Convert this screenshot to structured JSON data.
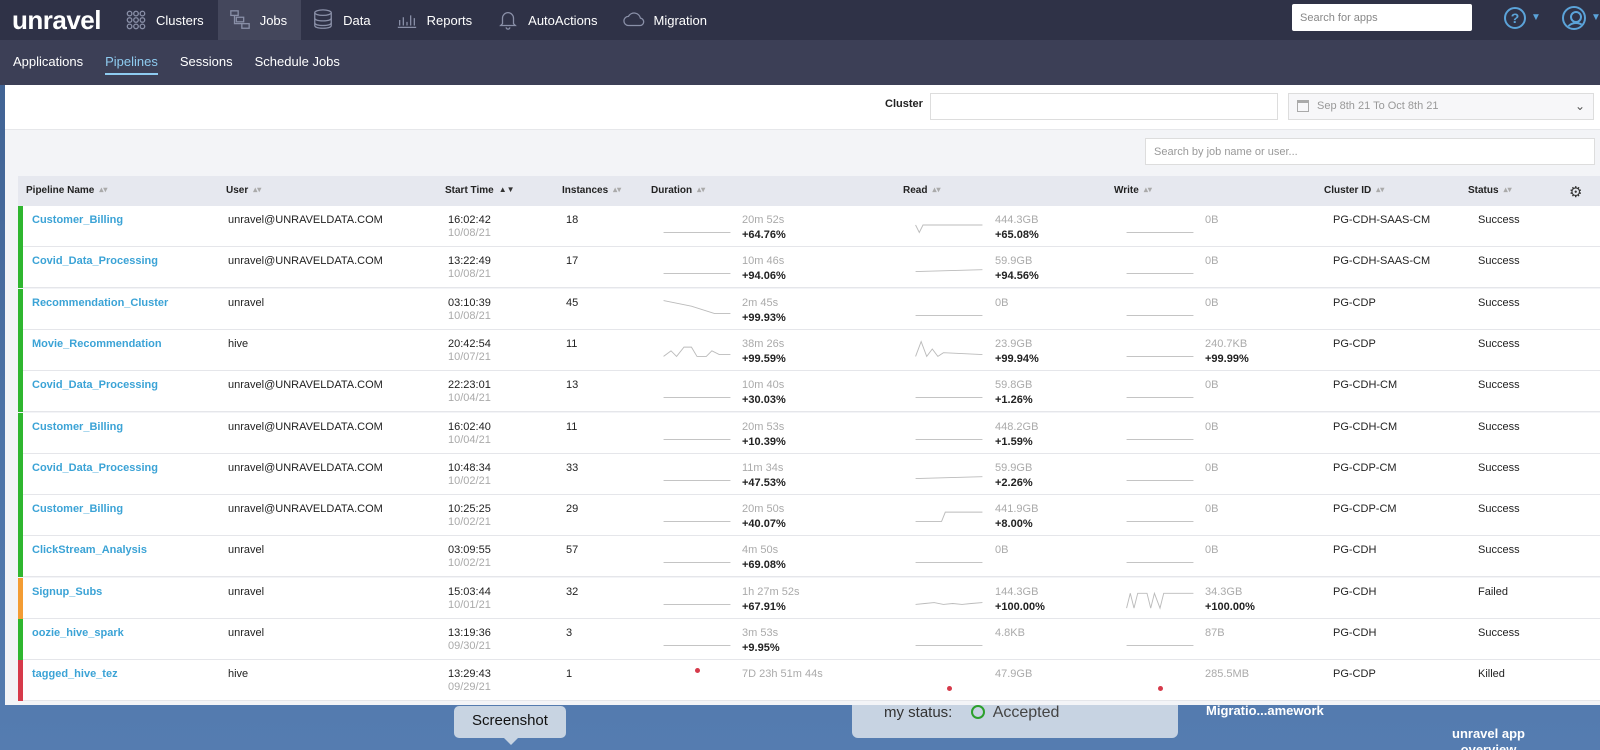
{
  "brand": "unravel",
  "nav": [
    {
      "label": "Clusters",
      "icon": "clusters-icon",
      "active": false
    },
    {
      "label": "Jobs",
      "icon": "jobs-icon",
      "active": true
    },
    {
      "label": "Data",
      "icon": "data-icon",
      "active": false
    },
    {
      "label": "Reports",
      "icon": "reports-icon",
      "active": false
    },
    {
      "label": "AutoActions",
      "icon": "bell-icon",
      "active": false
    },
    {
      "label": "Migration",
      "icon": "cloud-icon",
      "active": false
    }
  ],
  "search_apps": {
    "placeholder": "Search for apps"
  },
  "subnav": [
    {
      "label": "Applications",
      "active": false
    },
    {
      "label": "Pipelines",
      "active": true
    },
    {
      "label": "Sessions",
      "active": false
    },
    {
      "label": "Schedule Jobs",
      "active": false
    }
  ],
  "filters": {
    "cluster_label": "Cluster",
    "date_range": "Sep 8th 21 To Oct 8th 21"
  },
  "job_search": {
    "placeholder": "Search by job name or user..."
  },
  "columns": [
    "Pipeline Name",
    "User",
    "Start Time",
    "Instances",
    "Duration",
    "Read",
    "Write",
    "Cluster ID",
    "Status"
  ],
  "colors": {
    "success": "#2fb62f",
    "failed": "#f39c34",
    "killed": "#d63a4a",
    "link": "#3ba3d6"
  },
  "rows": [
    {
      "name": "Customer_Billing",
      "user": "unravel@UNRAVELDATA.COM",
      "time": "16:02:42",
      "date": "10/08/21",
      "instances": "18",
      "duration": "20m 52s",
      "duration_pct": "+64.76%",
      "read": "444.3GB",
      "read_pct": "+65.08%",
      "write": "0B",
      "write_pct": "",
      "cluster": "PG-CDH-SAAS-CM",
      "status": "Success"
    },
    {
      "name": "Covid_Data_Processing",
      "user": "unravel@UNRAVELDATA.COM",
      "time": "13:22:49",
      "date": "10/08/21",
      "instances": "17",
      "duration": "10m 46s",
      "duration_pct": "+94.06%",
      "read": "59.9GB",
      "read_pct": "+94.56%",
      "write": "0B",
      "write_pct": "",
      "cluster": "PG-CDH-SAAS-CM",
      "status": "Success"
    },
    {
      "name": "Recommendation_Cluster",
      "user": "unravel",
      "time": "03:10:39",
      "date": "10/08/21",
      "instances": "45",
      "duration": "2m 45s",
      "duration_pct": "+99.93%",
      "read": "0B",
      "read_pct": "",
      "write": "0B",
      "write_pct": "",
      "cluster": "PG-CDP",
      "status": "Success"
    },
    {
      "name": "Movie_Recommendation",
      "user": "hive",
      "time": "20:42:54",
      "date": "10/07/21",
      "instances": "11",
      "duration": "38m 26s",
      "duration_pct": "+99.59%",
      "read": "23.9GB",
      "read_pct": "+99.94%",
      "write": "240.7KB",
      "write_pct": "+99.99%",
      "cluster": "PG-CDP",
      "status": "Success"
    },
    {
      "name": "Covid_Data_Processing",
      "user": "unravel@UNRAVELDATA.COM",
      "time": "22:23:01",
      "date": "10/04/21",
      "instances": "13",
      "duration": "10m 40s",
      "duration_pct": "+30.03%",
      "read": "59.8GB",
      "read_pct": "+1.26%",
      "write": "0B",
      "write_pct": "",
      "cluster": "PG-CDH-CM",
      "status": "Success"
    },
    {
      "name": "Customer_Billing",
      "user": "unravel@UNRAVELDATA.COM",
      "time": "16:02:40",
      "date": "10/04/21",
      "instances": "11",
      "duration": "20m 53s",
      "duration_pct": "+10.39%",
      "read": "448.2GB",
      "read_pct": "+1.59%",
      "write": "0B",
      "write_pct": "",
      "cluster": "PG-CDH-CM",
      "status": "Success"
    },
    {
      "name": "Covid_Data_Processing",
      "user": "unravel@UNRAVELDATA.COM",
      "time": "10:48:34",
      "date": "10/02/21",
      "instances": "33",
      "duration": "11m 34s",
      "duration_pct": "+47.53%",
      "read": "59.9GB",
      "read_pct": "+2.26%",
      "write": "0B",
      "write_pct": "",
      "cluster": "PG-CDP-CM",
      "status": "Success"
    },
    {
      "name": "Customer_Billing",
      "user": "unravel@UNRAVELDATA.COM",
      "time": "10:25:25",
      "date": "10/02/21",
      "instances": "29",
      "duration": "20m 50s",
      "duration_pct": "+40.07%",
      "read": "441.9GB",
      "read_pct": "+8.00%",
      "write": "0B",
      "write_pct": "",
      "cluster": "PG-CDP-CM",
      "status": "Success"
    },
    {
      "name": "ClickStream_Analysis",
      "user": "unravel",
      "time": "03:09:55",
      "date": "10/02/21",
      "instances": "57",
      "duration": "4m 50s",
      "duration_pct": "+69.08%",
      "read": "0B",
      "read_pct": "",
      "write": "0B",
      "write_pct": "",
      "cluster": "PG-CDH",
      "status": "Success"
    },
    {
      "name": "Signup_Subs",
      "user": "unravel",
      "time": "15:03:44",
      "date": "10/01/21",
      "instances": "32",
      "duration": "1h 27m 52s",
      "duration_pct": "+67.91%",
      "read": "144.3GB",
      "read_pct": "+100.00%",
      "write": "34.3GB",
      "write_pct": "+100.00%",
      "cluster": "PG-CDH",
      "status": "Failed"
    },
    {
      "name": "oozie_hive_spark",
      "user": "unravel",
      "time": "13:19:36",
      "date": "09/30/21",
      "instances": "3",
      "duration": "3m 53s",
      "duration_pct": "+9.95%",
      "read": "4.8KB",
      "read_pct": "",
      "write": "87B",
      "write_pct": "",
      "cluster": "PG-CDH",
      "status": "Success"
    },
    {
      "name": "tagged_hive_tez",
      "user": "hive",
      "time": "13:29:43",
      "date": "09/29/21",
      "instances": "1",
      "duration": "7D 23h 51m 44s",
      "duration_pct": "",
      "read": "47.9GB",
      "read_pct": "",
      "write": "285.5MB",
      "write_pct": "",
      "cluster": "PG-CDP",
      "status": "Killed"
    }
  ],
  "desktop": {
    "tooltip": "Screenshot",
    "status_label": "my status:",
    "status_value": "Accepted",
    "migration_text": "Migratio...amework",
    "app_label_1": "unravel app",
    "app_label_2": "overview"
  }
}
